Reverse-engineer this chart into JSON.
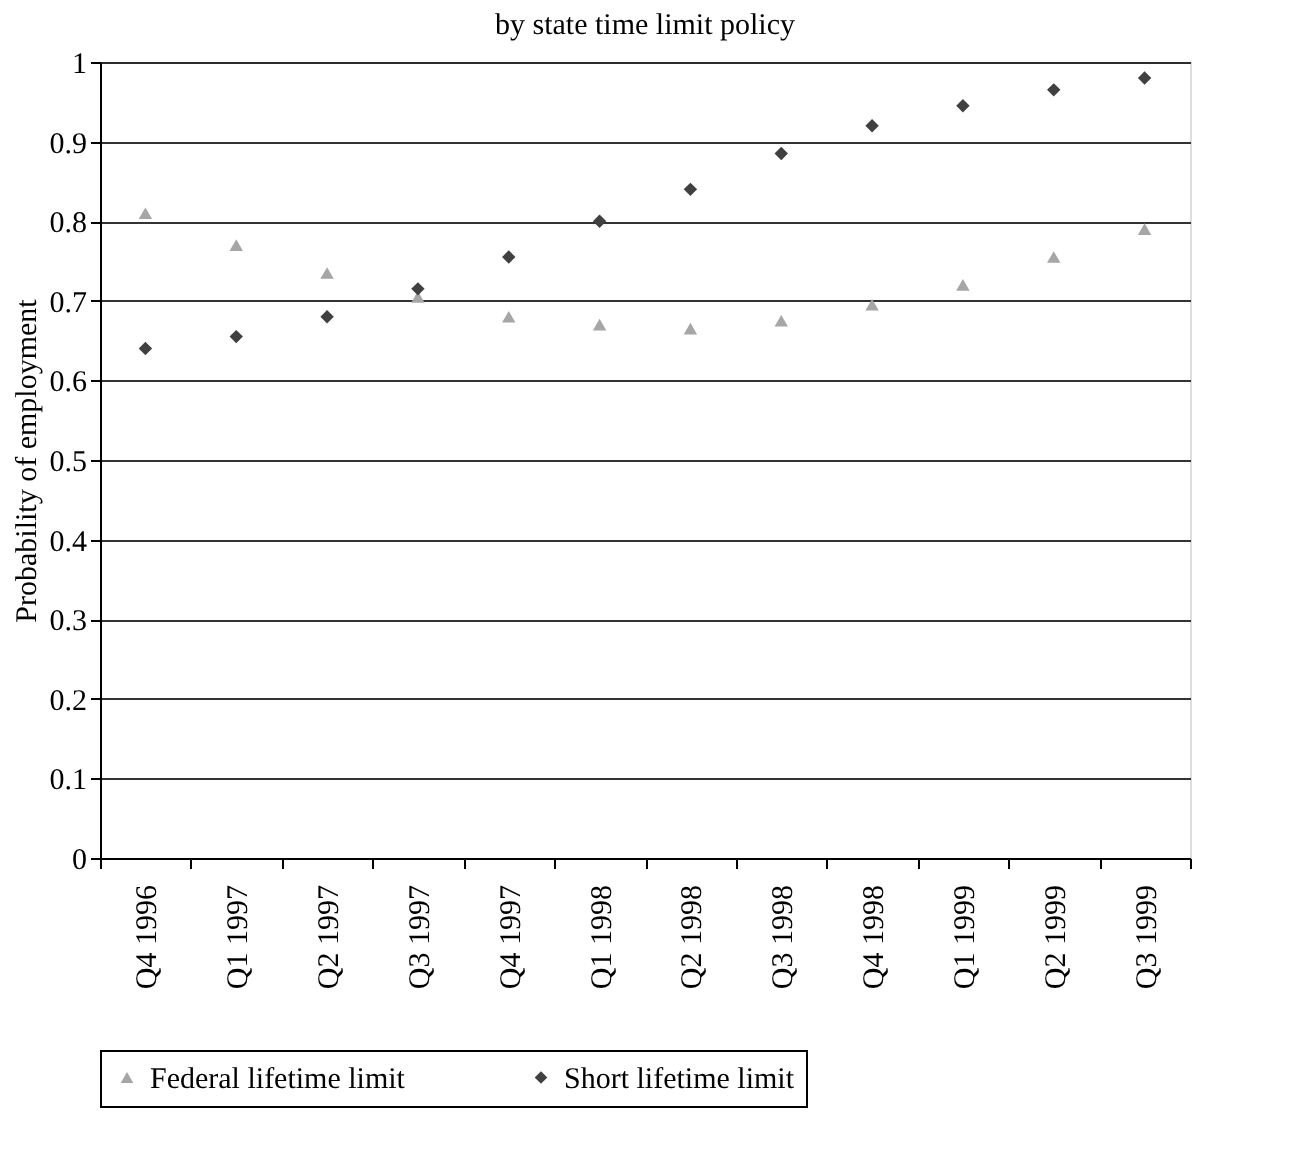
{
  "chart_data": {
    "type": "scatter",
    "title": "by state time limit policy",
    "ylabel": "Probability of employment",
    "categories": [
      "Q4 1996",
      "Q1 1997",
      "Q2 1997",
      "Q3 1997",
      "Q4 1997",
      "Q1 1998",
      "Q2 1998",
      "Q3 1998",
      "Q4 1998",
      "Q1 1999",
      "Q2 1999",
      "Q3 1999"
    ],
    "series": [
      {
        "name": "Federal lifetime limit",
        "color": "#a6a6a6",
        "marker": "triangle",
        "values": [
          0.81,
          0.77,
          0.735,
          0.705,
          0.68,
          0.67,
          0.665,
          0.675,
          0.695,
          0.72,
          0.755,
          0.79
        ]
      },
      {
        "name": "Short lifetime limit",
        "color": "#404040",
        "marker": "diamond",
        "values": [
          0.64,
          0.655,
          0.68,
          0.715,
          0.755,
          0.8,
          0.84,
          0.885,
          0.92,
          0.945,
          0.965,
          0.98
        ]
      }
    ],
    "ylim": [
      0,
      1
    ],
    "yticks": [
      0,
      0.1,
      0.2,
      0.3,
      0.4,
      0.5,
      0.6,
      0.7,
      0.8,
      0.9,
      1
    ],
    "grid": "y",
    "legend": "bottom"
  }
}
